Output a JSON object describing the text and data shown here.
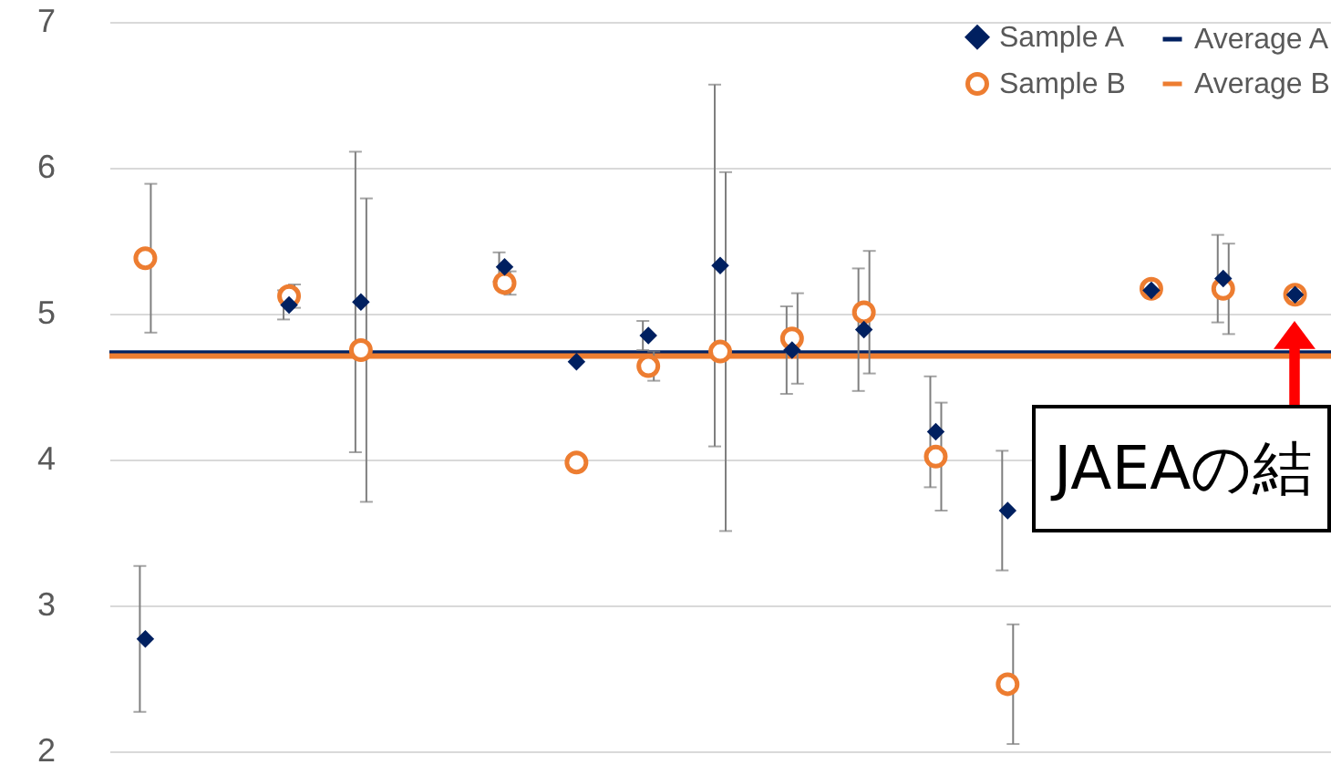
{
  "chart_data": {
    "type": "scatter",
    "categories": [
      null,
      null,
      null,
      null,
      null,
      null,
      null,
      null,
      null,
      null,
      null,
      null,
      null,
      null,
      null,
      null,
      null
    ],
    "series": [
      {
        "name": "Sample A",
        "color": "#002060",
        "marker": "diamond",
        "values": [
          2.77,
          null,
          5.06,
          5.08,
          null,
          5.32,
          4.67,
          4.85,
          5.33,
          4.75,
          4.89,
          4.19,
          3.65,
          null,
          5.16,
          5.24,
          5.13
        ],
        "errors": [
          0.5,
          null,
          0.1,
          1.03,
          null,
          0.1,
          null,
          0.1,
          1.24,
          0.3,
          0.42,
          0.38,
          0.41,
          null,
          null,
          0.3,
          null
        ]
      },
      {
        "name": "Sample B",
        "color": "#ed7d31",
        "marker": "circle",
        "values": [
          5.38,
          null,
          5.12,
          4.75,
          null,
          5.21,
          3.98,
          4.64,
          4.74,
          4.83,
          5.01,
          4.02,
          2.46,
          null,
          5.17,
          5.17,
          5.13
        ],
        "errors": [
          0.51,
          null,
          0.08,
          1.04,
          null,
          0.08,
          null,
          0.1,
          1.23,
          0.31,
          0.42,
          0.37,
          0.41,
          null,
          null,
          0.31,
          null
        ]
      }
    ],
    "ref_lines": [
      {
        "axis": "y",
        "value": 4.73,
        "label": "Average A",
        "color": "#002060"
      },
      {
        "axis": "y",
        "value": 4.71,
        "label": "Average B",
        "color": "#ed7d31"
      }
    ],
    "ylim": [
      2,
      7
    ],
    "yticks": [
      2,
      3,
      4,
      5,
      6,
      7
    ],
    "grid": "y",
    "legend": "top right",
    "tick_labels": "y",
    "annotations": [
      "JAEAの結"
    ]
  }
}
